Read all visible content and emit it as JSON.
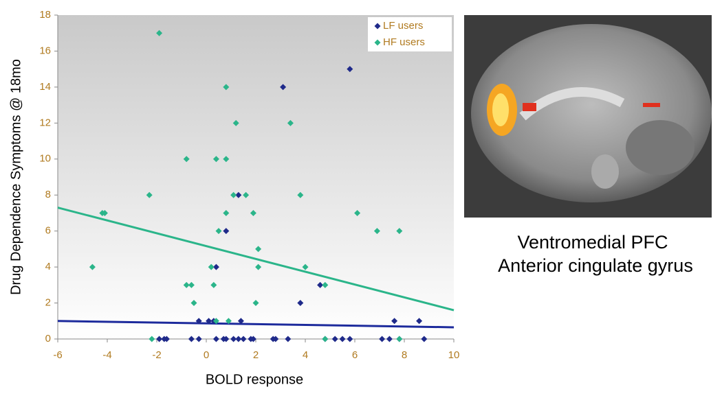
{
  "chart_data": {
    "type": "scatter",
    "xlabel": "BOLD response",
    "ylabel": "Drug Dependence Symptoms @ 18mo",
    "xlim": [
      -6,
      10
    ],
    "xticks": [
      -6,
      -4,
      -2,
      0,
      2,
      4,
      6,
      8,
      10
    ],
    "ylim": [
      0,
      18
    ],
    "yticks": [
      0,
      2,
      4,
      6,
      8,
      10,
      12,
      14,
      16,
      18
    ],
    "legend": "upper right",
    "series": [
      {
        "name": "LF users",
        "color": "#1f2a8a",
        "x": [
          5.8,
          3.1,
          1.3,
          0.8,
          0.4,
          4.6,
          3.8,
          7.6,
          8.6,
          -0.3,
          0.1,
          0.3,
          1.4,
          -1.9,
          -1.7,
          -1.6,
          -0.6,
          -0.3,
          0.4,
          0.7,
          0.8,
          1.1,
          1.3,
          1.5,
          1.8,
          1.9,
          2.7,
          2.8,
          3.3,
          4.8,
          5.2,
          5.5,
          5.8,
          7.1,
          7.4,
          7.8,
          8.8
        ],
        "y": [
          15,
          14,
          8,
          6,
          4,
          3,
          2,
          1,
          1,
          1,
          1,
          1,
          1,
          0,
          0,
          0,
          0,
          0,
          0,
          0,
          0,
          0,
          0,
          0,
          0,
          0,
          0,
          0,
          0,
          0,
          0,
          0,
          0,
          0,
          0,
          0,
          0
        ]
      },
      {
        "name": "HF users",
        "color": "#2bb58a",
        "x": [
          -1.9,
          0.8,
          1.2,
          3.4,
          -0.8,
          0.4,
          0.8,
          -2.3,
          1.1,
          1.6,
          3.8,
          -4.2,
          -4.1,
          0.8,
          1.9,
          6.1,
          0.5,
          6.9,
          7.8,
          2.1,
          -4.6,
          0.2,
          2.1,
          4.0,
          -0.8,
          -0.6,
          0.3,
          4.8,
          -0.5,
          2.0,
          0.4,
          0.9,
          -2.2,
          4.8,
          7.8
        ],
        "y": [
          17,
          14,
          12,
          12,
          10,
          10,
          10,
          8,
          8,
          8,
          8,
          7,
          7,
          7,
          7,
          7,
          6,
          6,
          6,
          5,
          4,
          4,
          4,
          4,
          3,
          3,
          3,
          3,
          2,
          2,
          1,
          1,
          0,
          0,
          0
        ]
      }
    ],
    "trendlines": [
      {
        "color": "#1c2a9c",
        "x": [
          -6,
          10
        ],
        "y": [
          1.0,
          0.65
        ]
      },
      {
        "color": "#2bb58a",
        "x": [
          -6,
          10
        ],
        "y": [
          7.3,
          1.6
        ]
      }
    ]
  },
  "image_caption": [
    "Ventromedial PFC",
    "Anterior cingulate gyrus"
  ]
}
